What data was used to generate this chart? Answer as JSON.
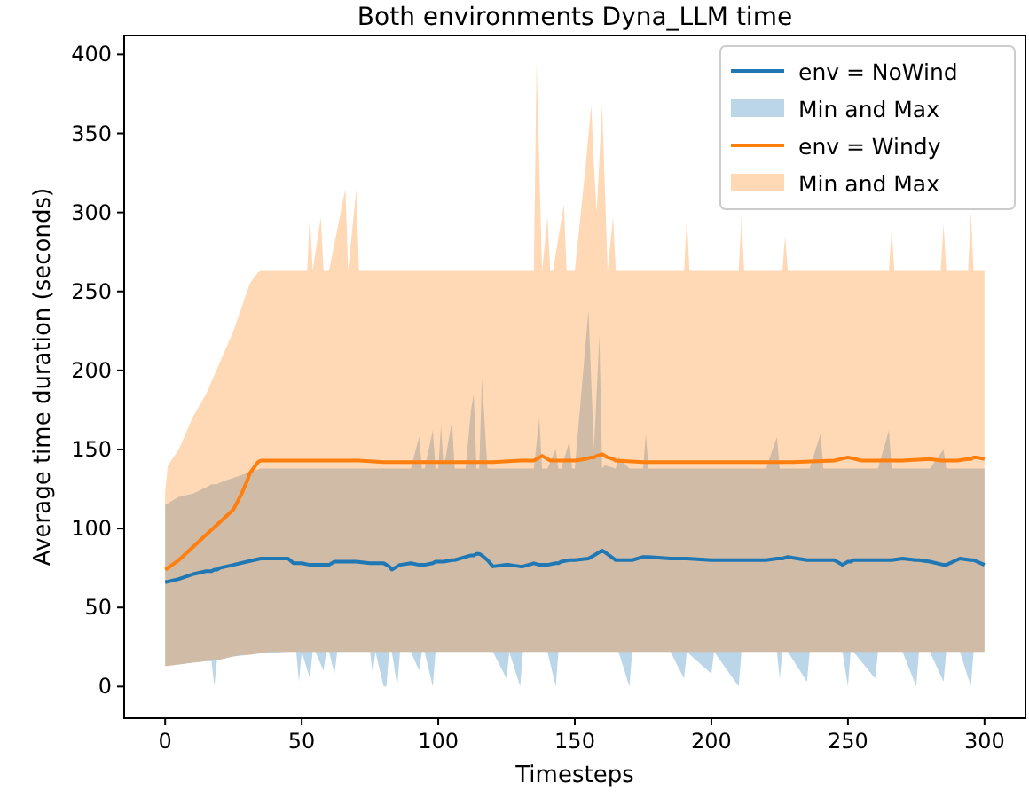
{
  "chart_data": {
    "type": "line",
    "title": "Both environments Dyna_LLM time",
    "xlabel": "Timesteps",
    "ylabel": "Average time duration (seconds)",
    "xlim": [
      -15,
      315
    ],
    "ylim": [
      -20,
      412
    ],
    "xticks": [
      0,
      50,
      100,
      150,
      200,
      250,
      300
    ],
    "yticks": [
      0,
      50,
      100,
      150,
      200,
      250,
      300,
      350,
      400
    ],
    "grid": false,
    "legend": "top right",
    "series": [
      {
        "name": "env = NoWind",
        "type": "line",
        "color": "#1f77b4",
        "x": [
          0,
          5,
          10,
          15,
          17,
          18,
          19,
          20,
          25,
          30,
          35,
          45,
          47,
          48,
          49,
          50,
          53,
          54,
          55,
          58,
          59,
          60,
          62,
          63,
          70,
          75,
          76,
          77,
          80,
          81,
          82,
          83,
          85,
          86,
          90,
          93,
          94,
          95,
          98,
          99,
          100,
          101,
          102,
          105,
          106,
          110,
          112,
          113,
          114,
          115,
          116,
          118,
          120,
          125,
          126,
          130,
          131,
          135,
          137,
          138,
          140,
          143,
          144,
          145,
          148,
          149,
          150,
          155,
          157,
          159,
          160,
          161,
          165,
          166,
          170,
          171,
          175,
          176,
          177,
          185,
          190,
          191,
          200,
          201,
          210,
          211,
          220,
          224,
          225,
          226,
          228,
          235,
          236,
          240,
          241,
          245,
          248,
          250,
          251,
          252,
          260,
          261,
          265,
          266,
          270,
          275,
          276,
          280,
          285,
          286,
          291,
          295,
          296,
          300
        ],
        "values": [
          66,
          68,
          71,
          73,
          73,
          74,
          74,
          75,
          77,
          79,
          81,
          81,
          78,
          78,
          78,
          78,
          77,
          77,
          77,
          77,
          77,
          77,
          79,
          79,
          79,
          78,
          78,
          78,
          78,
          77,
          76,
          74,
          76,
          77,
          78,
          77,
          77,
          77,
          78,
          79,
          79,
          79,
          79,
          80,
          80,
          82,
          83,
          83,
          84,
          84,
          83,
          80,
          76,
          77,
          77,
          76,
          76,
          78,
          77,
          77,
          77,
          78,
          78,
          79,
          80,
          80,
          80,
          81,
          83,
          85,
          86,
          85,
          80,
          80,
          80,
          80,
          82,
          82,
          82,
          81,
          81,
          81,
          80,
          80,
          80,
          80,
          80,
          81,
          81,
          81,
          82,
          80,
          80,
          80,
          80,
          80,
          77,
          79,
          79,
          80,
          80,
          80,
          80,
          80,
          81,
          80,
          80,
          79,
          77,
          77,
          81,
          80,
          80,
          77
        ],
        "lower": [
          13,
          14,
          15,
          16,
          16,
          0,
          17,
          17,
          19,
          20,
          21,
          22,
          22,
          22,
          3,
          22,
          5,
          22,
          22,
          10,
          22,
          22,
          8,
          22,
          22,
          22,
          8,
          22,
          0,
          0,
          22,
          22,
          0,
          22,
          22,
          10,
          22,
          22,
          0,
          22,
          22,
          22,
          22,
          22,
          22,
          22,
          22,
          22,
          22,
          22,
          22,
          22,
          22,
          5,
          22,
          0,
          22,
          22,
          22,
          22,
          22,
          0,
          22,
          22,
          22,
          22,
          22,
          22,
          22,
          22,
          22,
          22,
          22,
          22,
          0,
          22,
          22,
          22,
          22,
          22,
          5,
          22,
          8,
          22,
          0,
          22,
          22,
          22,
          5,
          22,
          22,
          3,
          22,
          22,
          22,
          22,
          22,
          0,
          22,
          22,
          5,
          22,
          22,
          22,
          22,
          0,
          22,
          22,
          3,
          22,
          22,
          0,
          22,
          22
        ],
        "upper": [
          115,
          120,
          122,
          126,
          128,
          128,
          128,
          129,
          132,
          135,
          138,
          138,
          138,
          138,
          138,
          138,
          138,
          138,
          138,
          138,
          138,
          138,
          138,
          138,
          138,
          138,
          138,
          138,
          138,
          138,
          138,
          138,
          138,
          138,
          138,
          158,
          138,
          138,
          162,
          138,
          138,
          165,
          138,
          168,
          138,
          138,
          175,
          185,
          138,
          138,
          195,
          138,
          138,
          138,
          138,
          138,
          138,
          138,
          170,
          138,
          138,
          150,
          138,
          138,
          155,
          138,
          138,
          238,
          150,
          222,
          138,
          140,
          138,
          145,
          138,
          138,
          138,
          160,
          138,
          138,
          138,
          138,
          138,
          138,
          138,
          138,
          138,
          158,
          138,
          138,
          138,
          138,
          138,
          160,
          138,
          138,
          138,
          138,
          138,
          138,
          138,
          138,
          162,
          138,
          138,
          138,
          138,
          138,
          150,
          138,
          138,
          138,
          138,
          138
        ]
      },
      {
        "name": "Min and Max",
        "type": "area",
        "color": "#1f77b4"
      },
      {
        "name": "env = Windy",
        "type": "line",
        "color": "#ff7f0e",
        "x": [
          0,
          1,
          5,
          10,
          15,
          20,
          25,
          28,
          30,
          31,
          34,
          35,
          38,
          52,
          53,
          54,
          57,
          58,
          60,
          66,
          67,
          70,
          71,
          80,
          100,
          120,
          130,
          134,
          135,
          136,
          138,
          140,
          141,
          142,
          146,
          147,
          150,
          154,
          156,
          157,
          158,
          160,
          162,
          164,
          165,
          175,
          190,
          191,
          192,
          200,
          210,
          211,
          212,
          226,
          227,
          228,
          230,
          245,
          250,
          255,
          265,
          266,
          267,
          270,
          280,
          284,
          285,
          286,
          290,
          294,
          295,
          296,
          297,
          300
        ],
        "values": [
          74,
          75,
          80,
          88,
          96,
          104,
          112,
          122,
          130,
          135,
          142,
          143,
          143,
          143,
          143,
          143,
          143,
          143,
          143,
          143,
          143,
          143,
          143,
          142,
          142,
          142,
          143,
          143,
          143,
          144,
          146,
          144,
          143,
          143,
          143,
          143,
          143,
          144,
          145,
          145,
          146,
          147,
          145,
          144,
          143,
          142,
          142,
          142,
          142,
          142,
          142,
          142,
          142,
          142,
          142,
          142,
          142,
          143,
          145,
          143,
          143,
          143,
          143,
          143,
          144,
          143,
          143,
          143,
          143,
          144,
          144,
          145,
          145,
          144
        ],
        "lower": [
          13,
          13,
          14,
          15,
          16,
          17,
          19,
          20,
          20,
          20,
          21,
          21,
          22,
          22,
          22,
          22,
          22,
          22,
          22,
          22,
          22,
          22,
          22,
          22,
          22,
          22,
          22,
          22,
          22,
          22,
          22,
          22,
          22,
          22,
          22,
          22,
          22,
          22,
          22,
          22,
          22,
          22,
          22,
          22,
          22,
          22,
          22,
          22,
          22,
          22,
          22,
          22,
          22,
          22,
          22,
          22,
          22,
          22,
          22,
          22,
          22,
          22,
          22,
          22,
          22,
          22,
          22,
          22,
          22,
          22,
          22,
          22,
          22,
          22
        ],
        "upper": [
          123,
          140,
          150,
          170,
          185,
          205,
          225,
          240,
          250,
          255,
          262,
          263,
          263,
          263,
          300,
          263,
          297,
          263,
          263,
          315,
          263,
          315,
          263,
          263,
          263,
          263,
          263,
          263,
          263,
          395,
          263,
          297,
          263,
          263,
          305,
          263,
          263,
          330,
          368,
          330,
          300,
          368,
          263,
          297,
          263,
          263,
          263,
          297,
          263,
          263,
          263,
          297,
          263,
          263,
          285,
          263,
          263,
          263,
          263,
          263,
          263,
          290,
          263,
          263,
          263,
          263,
          293,
          263,
          263,
          263,
          300,
          263,
          263,
          263
        ]
      },
      {
        "name": "Min and Max",
        "type": "area",
        "color": "#ff7f0e"
      }
    ]
  }
}
